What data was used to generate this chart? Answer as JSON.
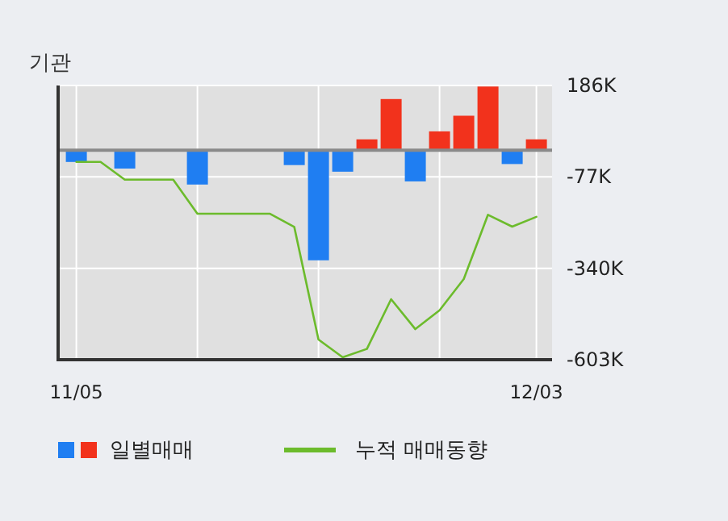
{
  "chart_data": {
    "type": "bar",
    "title": "기관",
    "categories": [
      "11/05",
      null,
      null,
      null,
      null,
      null,
      null,
      null,
      null,
      null,
      null,
      null,
      null,
      null,
      null,
      null,
      null,
      null,
      null,
      "12/03"
    ],
    "series": [
      {
        "name": "일별매매",
        "colors": [
          "#1f7ef2",
          "#1f7ef2",
          "#1f7ef2",
          "#1f7ef2",
          "#1f7ef2",
          "#1f7ef2",
          "#1f7ef2",
          "#1f7ef2",
          "#1f7ef2",
          "#1f7ef2",
          "#1f7ef2",
          "#1f7ef2",
          "#f2321c",
          "#f2321c",
          "#1f7ef2",
          "#f2321c",
          "#f2321c",
          "#f2321c",
          "#1f7ef2",
          "#f2321c"
        ],
        "values": [
          -34,
          0,
          -53,
          0,
          0,
          -99,
          0,
          0,
          0,
          -43,
          -317,
          -62,
          31,
          147,
          -90,
          54,
          99,
          183,
          -40,
          31
        ]
      },
      {
        "name": "누적 매매동향",
        "type": "line",
        "color": "#6cbb2c",
        "values": [
          -34,
          -34,
          -85,
          -85,
          -85,
          -183,
          -183,
          -183,
          -183,
          -221,
          -545,
          -596,
          -572,
          -429,
          -515,
          -461,
          -371,
          -186,
          -220,
          -192
        ]
      }
    ],
    "ylim": [
      -603,
      186
    ],
    "yticks": [
      {
        "value": 186,
        "label": "186K"
      },
      {
        "value": -77,
        "label": "-77K"
      },
      {
        "value": -340,
        "label": "-340K"
      },
      {
        "value": -603,
        "label": "-603K"
      }
    ],
    "grid": true,
    "legend": "bottom"
  }
}
